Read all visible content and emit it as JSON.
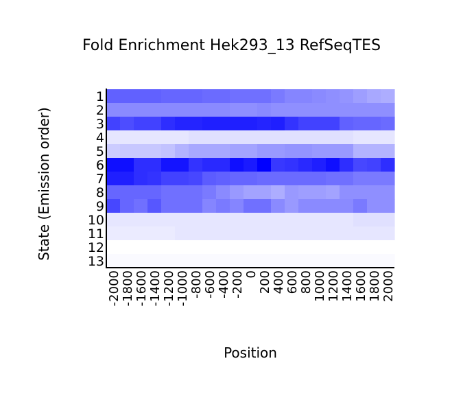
{
  "chart_data": {
    "type": "heatmap",
    "title": "Fold Enrichment Hek293_13 RefSeqTES",
    "xlabel": "Position",
    "ylabel": "State (Emission order)",
    "x": [
      -2000,
      -1800,
      -1600,
      -1400,
      -1200,
      -1000,
      -800,
      -600,
      -400,
      -200,
      0,
      200,
      400,
      600,
      800,
      1000,
      1200,
      1400,
      1600,
      1800,
      2000
    ],
    "x_tick_labels": [
      "-2000",
      "-1800",
      "-1600",
      "-1400",
      "-1200",
      "-1000",
      "-800",
      "-600",
      "-400",
      "-200",
      "0",
      "200",
      "400",
      "600",
      "800",
      "1000",
      "1200",
      "1400",
      "1600",
      "1800",
      "2000"
    ],
    "y": [
      "1",
      "2",
      "3",
      "4",
      "5",
      "6",
      "7",
      "8",
      "9",
      "10",
      "11",
      "12",
      "13"
    ],
    "color_min": "#ffffff",
    "color_max": "#0000ff",
    "values": [
      [
        0.62,
        0.62,
        0.62,
        0.62,
        0.6,
        0.6,
        0.6,
        0.58,
        0.58,
        0.56,
        0.56,
        0.56,
        0.52,
        0.48,
        0.48,
        0.46,
        0.44,
        0.42,
        0.38,
        0.34,
        0.32
      ],
      [
        0.46,
        0.46,
        0.46,
        0.46,
        0.46,
        0.46,
        0.46,
        0.46,
        0.46,
        0.44,
        0.44,
        0.46,
        0.44,
        0.44,
        0.44,
        0.44,
        0.44,
        0.44,
        0.44,
        0.44,
        0.44
      ],
      [
        0.74,
        0.7,
        0.74,
        0.74,
        0.82,
        0.86,
        0.86,
        0.88,
        0.88,
        0.88,
        0.88,
        0.86,
        0.88,
        0.8,
        0.74,
        0.74,
        0.74,
        0.62,
        0.6,
        0.6,
        0.58
      ],
      [
        0.1,
        0.1,
        0.1,
        0.1,
        0.1,
        0.1,
        0.12,
        0.12,
        0.12,
        0.12,
        0.12,
        0.12,
        0.12,
        0.12,
        0.12,
        0.12,
        0.12,
        0.12,
        0.1,
        0.1,
        0.1
      ],
      [
        0.2,
        0.22,
        0.22,
        0.22,
        0.24,
        0.3,
        0.34,
        0.34,
        0.34,
        0.36,
        0.36,
        0.4,
        0.4,
        0.42,
        0.42,
        0.4,
        0.4,
        0.4,
        0.3,
        0.3,
        0.3
      ],
      [
        0.94,
        0.94,
        0.82,
        0.82,
        0.92,
        0.92,
        0.8,
        0.84,
        0.84,
        0.94,
        0.9,
        1.0,
        0.78,
        0.8,
        0.84,
        0.88,
        0.94,
        0.82,
        0.72,
        0.74,
        0.82
      ],
      [
        0.88,
        0.88,
        0.82,
        0.8,
        0.74,
        0.74,
        0.72,
        0.64,
        0.62,
        0.6,
        0.6,
        0.58,
        0.58,
        0.58,
        0.58,
        0.58,
        0.56,
        0.56,
        0.52,
        0.52,
        0.52
      ],
      [
        0.6,
        0.6,
        0.6,
        0.6,
        0.56,
        0.56,
        0.56,
        0.52,
        0.46,
        0.4,
        0.36,
        0.36,
        0.32,
        0.4,
        0.38,
        0.38,
        0.36,
        0.44,
        0.44,
        0.44,
        0.44
      ],
      [
        0.72,
        0.6,
        0.56,
        0.66,
        0.56,
        0.56,
        0.56,
        0.48,
        0.52,
        0.48,
        0.56,
        0.56,
        0.46,
        0.4,
        0.46,
        0.46,
        0.46,
        0.46,
        0.52,
        0.44,
        0.44
      ],
      [
        0.1,
        0.1,
        0.1,
        0.1,
        0.1,
        0.1,
        0.1,
        0.1,
        0.1,
        0.1,
        0.1,
        0.1,
        0.1,
        0.1,
        0.1,
        0.1,
        0.1,
        0.1,
        0.12,
        0.12,
        0.12
      ],
      [
        0.08,
        0.08,
        0.08,
        0.08,
        0.08,
        0.1,
        0.1,
        0.1,
        0.1,
        0.1,
        0.1,
        0.1,
        0.1,
        0.1,
        0.1,
        0.1,
        0.1,
        0.1,
        0.1,
        0.1,
        0.1
      ],
      [
        0.0,
        0.0,
        0.0,
        0.0,
        0.0,
        0.0,
        0.0,
        0.0,
        0.0,
        0.0,
        0.0,
        0.0,
        0.0,
        0.0,
        0.0,
        0.0,
        0.0,
        0.0,
        0.0,
        0.0,
        0.0
      ],
      [
        0.02,
        0.02,
        0.02,
        0.02,
        0.02,
        0.02,
        0.02,
        0.02,
        0.02,
        0.02,
        0.02,
        0.02,
        0.02,
        0.02,
        0.02,
        0.02,
        0.02,
        0.02,
        0.02,
        0.02,
        0.02
      ]
    ]
  }
}
